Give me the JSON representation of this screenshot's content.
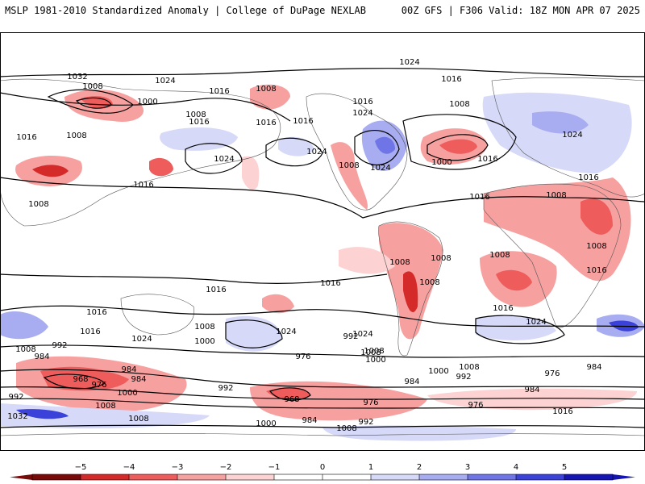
{
  "header": {
    "left": "MSLP 1981-2010 Standardized Anomaly | College of DuPage NEXLAB",
    "right": "00Z GFS | F306 Valid: 18Z MON APR 07 2025"
  },
  "colors": {
    "neg5": "#7a0a0a",
    "neg4": "#d42a2a",
    "neg3": "#ee5c5c",
    "neg2": "#f7a0a0",
    "neg1": "#fcd2d2",
    "zero": "#ffffff",
    "pos1": "#d6d9f7",
    "pos2": "#a8acf0",
    "pos3": "#6f75e6",
    "pos4": "#3b42d9",
    "pos5": "#1515b5",
    "isobar": "#000000",
    "coast": "#555555"
  },
  "colorbar": {
    "ticks": [
      "−5",
      "−4",
      "−3",
      "−2",
      "−1",
      "0",
      "1",
      "2",
      "3",
      "4",
      "5"
    ]
  },
  "isobar_labels": [
    {
      "text": "1024",
      "id": "np-1024-top"
    },
    {
      "text": "1032",
      "id": "eu-1032"
    },
    {
      "text": "1008",
      "id": "asia-1008-a"
    },
    {
      "text": "1024",
      "id": "asia-1024"
    },
    {
      "text": "1008",
      "id": "pac-1008-a"
    },
    {
      "text": "1000",
      "id": "asia-1000"
    },
    {
      "text": "1016",
      "id": "asia-1016-a"
    },
    {
      "text": "1008",
      "id": "asia-1008-b"
    },
    {
      "text": "1016",
      "id": "asia-1016-b"
    },
    {
      "text": "1016",
      "id": "wpac-1016"
    },
    {
      "text": "1008",
      "id": "pac-1008-b"
    },
    {
      "text": "1016",
      "id": "pac-1016-a"
    },
    {
      "text": "1016",
      "id": "na-1016-a"
    },
    {
      "text": "1024",
      "id": "na-1024-a"
    },
    {
      "text": "1016",
      "id": "natl-1016-a"
    },
    {
      "text": "1008",
      "id": "natl-1008"
    },
    {
      "text": "1016",
      "id": "na-1016-b"
    },
    {
      "text": "1024",
      "id": "pac-1024"
    },
    {
      "text": "1024",
      "id": "na-1024-b"
    },
    {
      "text": "1008",
      "id": "na-1008"
    },
    {
      "text": "1024",
      "id": "na-1024-c"
    },
    {
      "text": "1000",
      "id": "natl-1000"
    },
    {
      "text": "1016",
      "id": "natl-1016-b"
    },
    {
      "text": "1024",
      "id": "eu-1024"
    },
    {
      "text": "1016",
      "id": "eu-1016"
    },
    {
      "text": "1016",
      "id": "ind-1016"
    },
    {
      "text": "1008",
      "id": "india-1008"
    },
    {
      "text": "1008",
      "id": "afr-1008-a"
    },
    {
      "text": "1016",
      "id": "atl-1016"
    },
    {
      "text": "1008",
      "id": "afr-1008-b"
    },
    {
      "text": "1008",
      "id": "sa-1008-a"
    },
    {
      "text": "1008",
      "id": "sa-1008-b"
    },
    {
      "text": "1008",
      "id": "sa-1008-c"
    },
    {
      "text": "1008",
      "id": "afr-1008-c"
    },
    {
      "text": "1016",
      "id": "afr-1016"
    },
    {
      "text": "1016",
      "id": "spac-1016-a"
    },
    {
      "text": "1016",
      "id": "spac-1016-b"
    },
    {
      "text": "1016",
      "id": "satl-1016"
    },
    {
      "text": "1024",
      "id": "satl-1024"
    },
    {
      "text": "1016",
      "id": "aus-1016"
    },
    {
      "text": "1016",
      "id": "sind-1016"
    },
    {
      "text": "1024",
      "id": "sind-1024"
    },
    {
      "text": "1024",
      "id": "spac-1024"
    },
    {
      "text": "1024",
      "id": "satl-1024-b"
    },
    {
      "text": "1008",
      "id": "so-1008-a"
    },
    {
      "text": "1000",
      "id": "so-1000-a"
    },
    {
      "text": "992",
      "id": "so-992-a"
    },
    {
      "text": "984",
      "id": "so-984-a"
    },
    {
      "text": "968",
      "id": "so-968-a"
    },
    {
      "text": "976",
      "id": "so-976-a"
    },
    {
      "text": "984",
      "id": "so-984-b"
    },
    {
      "text": "1000",
      "id": "so-1000-b"
    },
    {
      "text": "992",
      "id": "so-992-b"
    },
    {
      "text": "1008",
      "id": "so-1008-b"
    },
    {
      "text": "1032",
      "id": "so-1032"
    },
    {
      "text": "1008",
      "id": "so-1008-c"
    },
    {
      "text": "992",
      "id": "so-992-c"
    },
    {
      "text": "992",
      "id": "so-992-d"
    },
    {
      "text": "984",
      "id": "so-984-c"
    },
    {
      "text": "976",
      "id": "so-976-b"
    },
    {
      "text": "968",
      "id": "so-968-b"
    },
    {
      "text": "976",
      "id": "so-976-c"
    },
    {
      "text": "984",
      "id": "so-984-d"
    },
    {
      "text": "1000",
      "id": "so-1000-c"
    },
    {
      "text": "984",
      "id": "so-984-e"
    },
    {
      "text": "992",
      "id": "so-992-e"
    },
    {
      "text": "1008",
      "id": "so-1008-d"
    },
    {
      "text": "1008",
      "id": "so-1008-e"
    },
    {
      "text": "1000",
      "id": "so-1000-d"
    },
    {
      "text": "1008",
      "id": "so-1008-f"
    },
    {
      "text": "1000",
      "id": "so-1000-e"
    },
    {
      "text": "992",
      "id": "so-992-f"
    },
    {
      "text": "1008",
      "id": "so-1008-g"
    },
    {
      "text": "976",
      "id": "so-976-d"
    },
    {
      "text": "984",
      "id": "so-984-f"
    },
    {
      "text": "984",
      "id": "so-984-g"
    },
    {
      "text": "1016",
      "id": "so-1016"
    },
    {
      "text": "976",
      "id": "so-976-e"
    },
    {
      "text": "1008",
      "id": "so-1008-h"
    }
  ]
}
